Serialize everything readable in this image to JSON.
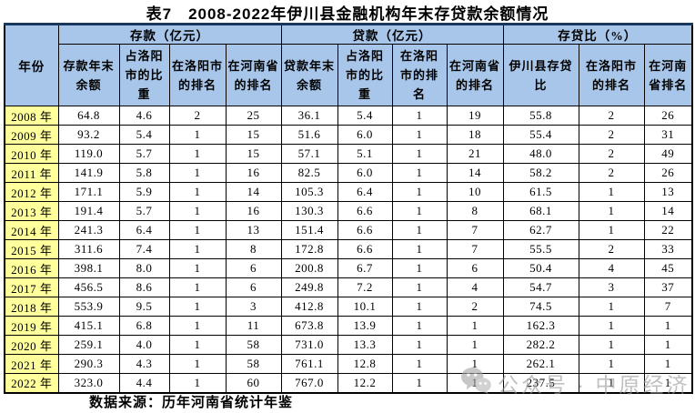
{
  "title": "表7　2008-2022年伊川县金融机构年末存贷款余额情况",
  "source_note": "数据来源：历年河南省统计年鉴",
  "watermark": {
    "icon": "wechat-official-account-icon",
    "text": "公众号 · 中原经济"
  },
  "colors": {
    "header_bg": "#A8C6EA",
    "year_col_bg": "#FFFF9C",
    "table_top_border": "#17375D",
    "grid_line": "#000000",
    "watermark_gray": "#9a9a9a"
  },
  "table": {
    "year_header": "年份",
    "groups": [
      {
        "label": "存款（亿元）",
        "columns": [
          "存款年末余额",
          "占洛阳市的比重",
          "在洛阳市的排名",
          "在河南省的排名"
        ]
      },
      {
        "label": "贷款（亿元）",
        "columns": [
          "贷款年末余额",
          "占洛阳市的比重",
          "在洛阳市的排名",
          "在河南省的排名"
        ]
      },
      {
        "label": "存贷比（%）",
        "columns": [
          "伊川县存贷比",
          "在洛阳市的排名",
          "在河南省排名"
        ]
      }
    ],
    "rows": [
      {
        "year": "2008 年",
        "values": [
          "64.8",
          "4.6",
          "2",
          "25",
          "36.1",
          "5.4",
          "1",
          "19",
          "55.8",
          "2",
          "26"
        ]
      },
      {
        "year": "2009 年",
        "values": [
          "93.2",
          "5.4",
          "1",
          "15",
          "51.6",
          "6.0",
          "1",
          "18",
          "55.4",
          "2",
          "31"
        ]
      },
      {
        "year": "2010 年",
        "values": [
          "119.0",
          "5.7",
          "1",
          "15",
          "57.1",
          "5.1",
          "1",
          "21",
          "48.0",
          "2",
          "49"
        ]
      },
      {
        "year": "2011 年",
        "values": [
          "141.9",
          "5.8",
          "1",
          "16",
          "82.5",
          "6.0",
          "1",
          "14",
          "58.2",
          "2",
          "26"
        ]
      },
      {
        "year": "2012 年",
        "values": [
          "171.1",
          "5.9",
          "1",
          "14",
          "105.3",
          "6.4",
          "1",
          "10",
          "61.5",
          "1",
          "13"
        ]
      },
      {
        "year": "2013 年",
        "values": [
          "191.4",
          "5.7",
          "1",
          "16",
          "130.3",
          "6.6",
          "1",
          "8",
          "68.1",
          "1",
          "14"
        ]
      },
      {
        "year": "2014 年",
        "values": [
          "241.3",
          "6.4",
          "1",
          "13",
          "151.4",
          "6.6",
          "1",
          "7",
          "62.7",
          "1",
          "22"
        ]
      },
      {
        "year": "2015 年",
        "values": [
          "311.6",
          "7.4",
          "1",
          "8",
          "172.8",
          "6.6",
          "1",
          "7",
          "55.5",
          "2",
          "33"
        ]
      },
      {
        "year": "2016 年",
        "values": [
          "398.1",
          "8.0",
          "1",
          "6",
          "200.8",
          "6.7",
          "1",
          "6",
          "50.4",
          "4",
          "45"
        ]
      },
      {
        "year": "2017 年",
        "values": [
          "456.5",
          "8.6",
          "1",
          "6",
          "249.8",
          "7.2",
          "1",
          "4",
          "54.7",
          "3",
          "37"
        ]
      },
      {
        "year": "2018 年",
        "values": [
          "553.9",
          "9.5",
          "1",
          "3",
          "412.8",
          "10.1",
          "1",
          "2",
          "74.5",
          "1",
          "7"
        ]
      },
      {
        "year": "2019 年",
        "values": [
          "415.1",
          "6.8",
          "1",
          "11",
          "673.8",
          "13.9",
          "1",
          "1",
          "162.3",
          "1",
          "1"
        ]
      },
      {
        "year": "2020 年",
        "values": [
          "259.1",
          "4.0",
          "1",
          "58",
          "731.0",
          "13.3",
          "1",
          "1",
          "282.2",
          "1",
          "1"
        ]
      },
      {
        "year": "2021 年",
        "values": [
          "290.3",
          "4.3",
          "1",
          "58",
          "761.1",
          "12.8",
          "1",
          "1",
          "262.1",
          "1",
          "1"
        ]
      },
      {
        "year": "2022 年",
        "values": [
          "323.0",
          "4.4",
          "1",
          "60",
          "767.0",
          "12.2",
          "1",
          "1",
          "237.5",
          "1",
          "1"
        ]
      }
    ]
  }
}
